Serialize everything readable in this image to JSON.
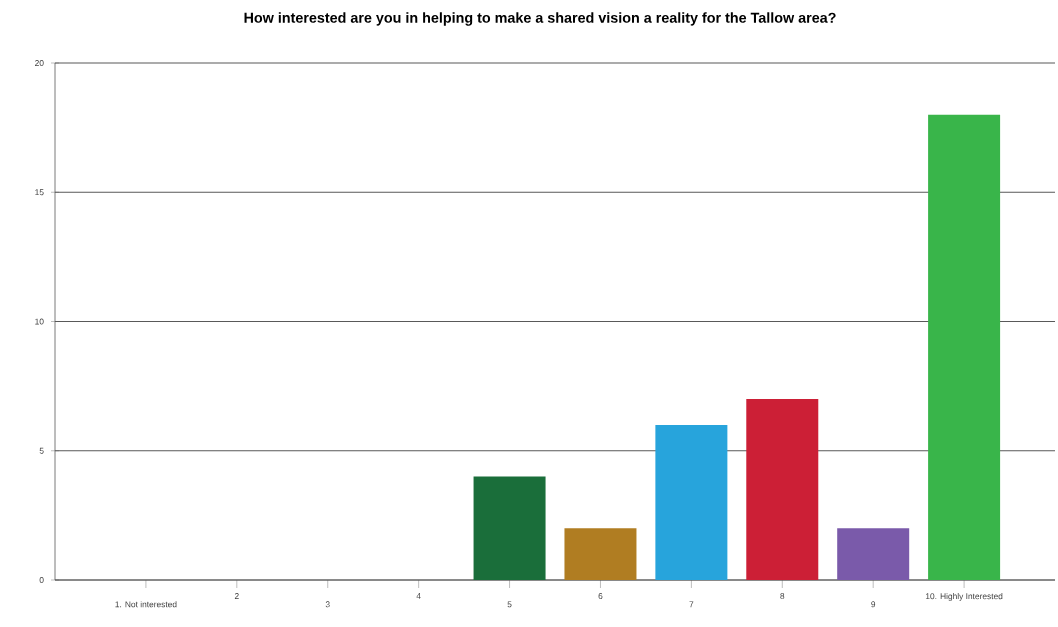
{
  "chart_data": {
    "type": "bar",
    "title": "How interested are you in helping to make a shared vision a reality for the Tallow area?",
    "categories": [
      "1. Not interested",
      "2",
      "3",
      "4",
      "5",
      "6",
      "7",
      "8",
      "9",
      "10. Highly Interested"
    ],
    "values": [
      0,
      0,
      0,
      0,
      4,
      2,
      6,
      7,
      2,
      18
    ],
    "colors": [
      "#7f7f7f",
      "#7f7f7f",
      "#7f7f7f",
      "#7f7f7f",
      "#1a6e3a",
      "#b07d22",
      "#27a4dc",
      "#cc1f36",
      "#7a5aaa",
      "#39b54a"
    ],
    "ylim": [
      0,
      20
    ],
    "yticks": [
      0,
      5,
      10,
      15,
      20
    ],
    "grid": "y"
  }
}
